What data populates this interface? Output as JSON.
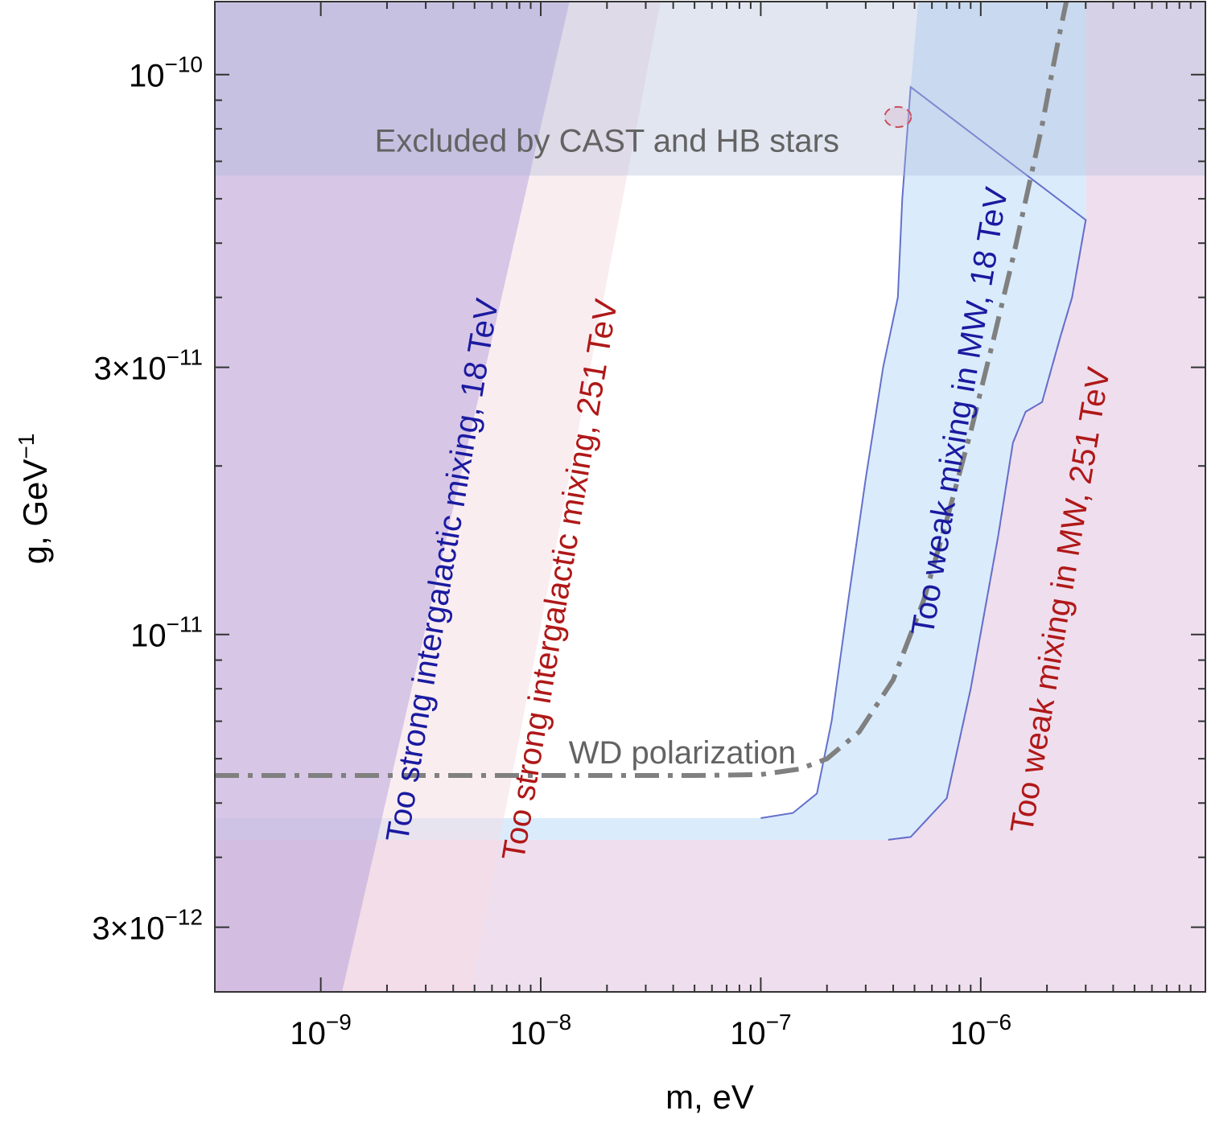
{
  "chart_data": {
    "type": "area",
    "x_scale": "log",
    "y_scale": "log",
    "xlim": [
      3.3e-10,
      1.05e-05
    ],
    "ylim": [
      2.3e-12,
      1.35e-10
    ],
    "xlabel": {
      "main": "m, eV"
    },
    "ylabel": {
      "main": "g, GeV",
      "sup": "−1"
    },
    "x_ticks": [
      {
        "value": 1e-09,
        "base": "10",
        "exp": "−9"
      },
      {
        "value": 1e-08,
        "base": "10",
        "exp": "−8"
      },
      {
        "value": 1e-07,
        "base": "10",
        "exp": "−7"
      },
      {
        "value": 1e-06,
        "base": "10",
        "exp": "−6"
      }
    ],
    "x_minor_ticks": [
      2e-09,
      3e-09,
      4e-09,
      5e-09,
      6e-09,
      7e-09,
      8e-09,
      9e-09,
      2e-08,
      3e-08,
      4e-08,
      5e-08,
      6e-08,
      7e-08,
      8e-08,
      9e-08,
      2e-07,
      3e-07,
      4e-07,
      5e-07,
      6e-07,
      7e-07,
      8e-07,
      9e-07,
      2e-06,
      3e-06,
      4e-06,
      5e-06,
      6e-06,
      7e-06,
      8e-06,
      9e-06
    ],
    "y_ticks": [
      {
        "value": 1e-10,
        "base": "10",
        "exp": "−10"
      },
      {
        "value": 3e-11,
        "base": "3×10",
        "exp": "−11"
      },
      {
        "value": 1e-11,
        "base": "10",
        "exp": "−11"
      },
      {
        "value": 3e-12,
        "base": "3×10",
        "exp": "−12"
      }
    ],
    "y_minor_ticks": [
      4e-12,
      5e-12,
      6e-12,
      7e-12,
      8e-12,
      9e-12,
      2e-11,
      4e-11,
      5e-11,
      6e-11,
      7e-11,
      8e-11,
      9e-11
    ],
    "regions": [
      {
        "name": "Too weak mixing in MW, 251 TeV",
        "fill": "#dcb7da",
        "fill_opacity": 0.45,
        "stroke": "#c8505a",
        "dash": true,
        "polygon": [
          [
            3.3e-10,
            2.3e-12
          ],
          [
            1.05e-05,
            2.3e-12
          ],
          [
            1.05e-05,
            1.35e-10
          ],
          [
            3e-06,
            1.35e-10
          ],
          [
            3e-06,
            5.5e-11
          ],
          [
            2.6e-06,
            4e-11
          ],
          [
            2.3e-06,
            3.4e-11
          ],
          [
            1.9e-06,
            2.6e-11
          ],
          [
            1.6e-06,
            2.5e-11
          ],
          [
            1.4e-06,
            2.2e-11
          ],
          [
            1.2e-06,
            1.5e-11
          ],
          [
            9e-07,
            8e-12
          ],
          [
            7e-07,
            5.1e-12
          ],
          [
            4.8e-07,
            4.35e-12
          ],
          [
            3.8e-07,
            4.3e-12
          ],
          [
            3.3e-10,
            4.3e-12
          ]
        ]
      },
      {
        "name": "Too weak mixing in MW, 18 TeV",
        "fill": "#cde6fb",
        "fill_opacity": 0.75,
        "stroke": "#6470cc",
        "dash": false,
        "polygon": [
          [
            3.3e-10,
            4.3e-12
          ],
          [
            3.8e-07,
            4.3e-12
          ],
          [
            4.8e-07,
            4.35e-12
          ],
          [
            7e-07,
            5.1e-12
          ],
          [
            9e-07,
            8e-12
          ],
          [
            1.2e-06,
            1.5e-11
          ],
          [
            1.4e-06,
            2.2e-11
          ],
          [
            1.6e-06,
            2.5e-11
          ],
          [
            1.9e-06,
            2.6e-11
          ],
          [
            2.3e-06,
            3.4e-11
          ],
          [
            2.6e-06,
            4e-11
          ],
          [
            3e-06,
            5.5e-11
          ],
          [
            3e-06,
            1.35e-10
          ],
          [
            5.2e-07,
            1.35e-10
          ],
          [
            4.8e-07,
            9.5e-11
          ],
          [
            4.4e-07,
            6e-11
          ],
          [
            4.2e-07,
            4e-11
          ],
          [
            3.6e-07,
            3e-11
          ],
          [
            3e-07,
            1.9e-11
          ],
          [
            2.5e-07,
            1.15e-11
          ],
          [
            2.1e-07,
            7e-12
          ],
          [
            1.8e-07,
            5.2e-12
          ],
          [
            1.4e-07,
            4.8e-12
          ],
          [
            1e-07,
            4.7e-12
          ],
          [
            3.3e-10,
            4.7e-12
          ]
        ]
      },
      {
        "name": "Too strong intergalactic mixing, 251 TeV",
        "fill": "#f6dbe2",
        "fill_opacity": 0.5,
        "stroke": "none",
        "dash": false,
        "polygon": [
          [
            3.3e-10,
            2.3e-12
          ],
          [
            4.8e-09,
            2.3e-12
          ],
          [
            3.5e-08,
            1.35e-10
          ],
          [
            3.3e-10,
            1.35e-10
          ]
        ]
      },
      {
        "name": "Too strong intergalactic mixing, 18 TeV",
        "fill": "#b4a0dc",
        "fill_opacity": 0.5,
        "stroke": "none",
        "dash": false,
        "polygon": [
          [
            3.3e-10,
            2.3e-12
          ],
          [
            1.25e-09,
            2.3e-12
          ],
          [
            1.35e-08,
            1.35e-10
          ],
          [
            3.3e-10,
            1.35e-10
          ]
        ]
      },
      {
        "name": "Excluded by CAST and HB stars",
        "fill": "#a8b8d6",
        "fill_opacity": 0.35,
        "stroke": "none",
        "dash": false,
        "polygon": [
          [
            3.3e-10,
            6.6e-11
          ],
          [
            1.05e-05,
            6.6e-11
          ],
          [
            1.05e-05,
            1.35e-10
          ],
          [
            3.3e-10,
            1.35e-10
          ]
        ]
      }
    ],
    "curves": [
      {
        "name": "WD polarization",
        "color": "#808080",
        "style": "dash-dot",
        "points": [
          [
            3.3e-10,
            5.6e-12
          ],
          [
            1e-08,
            5.6e-12
          ],
          [
            5e-08,
            5.6e-12
          ],
          [
            1e-07,
            5.62e-12
          ],
          [
            1.5e-07,
            5.75e-12
          ],
          [
            2e-07,
            6e-12
          ],
          [
            2.8e-07,
            6.7e-12
          ],
          [
            4e-07,
            8.3e-12
          ],
          [
            5.5e-07,
            1.15e-11
          ],
          [
            7e-07,
            1.6e-11
          ],
          [
            9e-07,
            2.3e-11
          ],
          [
            1.15e-06,
            3.4e-11
          ],
          [
            1.4e-06,
            4.7e-11
          ],
          [
            1.65e-06,
            6.3e-11
          ],
          [
            1.9e-06,
            8.1e-11
          ],
          [
            2.1e-06,
            1e-10
          ],
          [
            2.3e-06,
            1.2e-10
          ],
          [
            2.45e-06,
            1.35e-10
          ]
        ]
      }
    ],
    "ellipse": {
      "name": "small CAST contour",
      "cx": 4.2e-07,
      "cy": 8.4e-11,
      "rx_log": 0.06,
      "ry_log": 0.018,
      "stroke": "#c8505a",
      "fill": "#d9b0c8"
    },
    "labels": [
      {
        "name": "label-cast-hb",
        "text": "Excluded by CAST and HB stars",
        "x": 2e-08,
        "y": 7.55e-11,
        "angle": 0,
        "color": "#636363",
        "anchor": "middle"
      },
      {
        "name": "label-strong-18",
        "text": "Too strong intergalactic mixing, 18 TeV",
        "x": 3.65e-09,
        "y": 1.3e-11,
        "angle": -80.5,
        "color": "#1a1aa0",
        "anchor": "middle"
      },
      {
        "name": "label-strong-251",
        "text": "Too strong intergalactic mixing, 251 TeV",
        "x": 1.25e-08,
        "y": 1.25e-11,
        "angle": -80.5,
        "color": "#b01818",
        "anchor": "middle"
      },
      {
        "name": "label-weak-18",
        "text": "Too weak mixing in MW, 18 TeV",
        "x": 8.2e-07,
        "y": 2.5e-11,
        "angle": -80.5,
        "color": "#1a1aa0",
        "anchor": "middle"
      },
      {
        "name": "label-weak-251",
        "text": "Too weak mixing in MW, 251 TeV",
        "x": 2.35e-06,
        "y": 1.15e-11,
        "angle": -80.5,
        "color": "#b01818",
        "anchor": "middle"
      },
      {
        "name": "label-wd",
        "text": "WD polarization",
        "x": 4.4e-08,
        "y": 6.1e-12,
        "angle": 0,
        "color": "#636363",
        "anchor": "middle"
      }
    ]
  }
}
